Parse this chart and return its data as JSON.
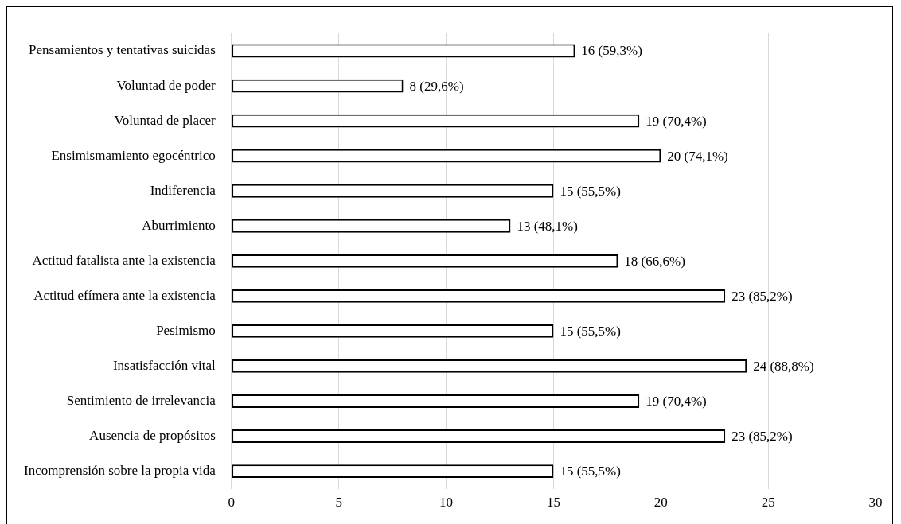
{
  "chart_data": {
    "type": "bar",
    "orientation": "horizontal",
    "categories": [
      "Pensamientos y tentativas suicidas",
      "Voluntad de poder",
      "Voluntad de placer",
      "Ensimismamiento egocéntrico",
      "Indiferencia",
      "Aburrimiento",
      "Actitud fatalista ante la existencia",
      "Actitud efímera ante la existencia",
      "Pesimismo",
      "Insatisfacción vital",
      "Sentimiento de irrelevancia",
      "Ausencia de propósitos",
      "Incomprensión sobre la propia vida"
    ],
    "values": [
      16,
      8,
      19,
      20,
      15,
      13,
      18,
      23,
      15,
      24,
      19,
      23,
      15
    ],
    "value_labels": [
      "16 (59,3%)",
      "8 (29,6%)",
      "19 (70,4%)",
      "20 (74,1%)",
      "15 (55,5%)",
      "13 (48,1%)",
      "18 (66,6%)",
      "23 (85,2%)",
      "15 (55,5%)",
      "24 (88,8%)",
      "19 (70,4%)",
      "23 (85,2%)",
      "15 (55,5%)"
    ],
    "color": "#ffffff",
    "xlim": [
      0,
      30
    ],
    "xticks": [
      0,
      5,
      10,
      15,
      20,
      25,
      30
    ],
    "grid": "x",
    "legend": false
  }
}
